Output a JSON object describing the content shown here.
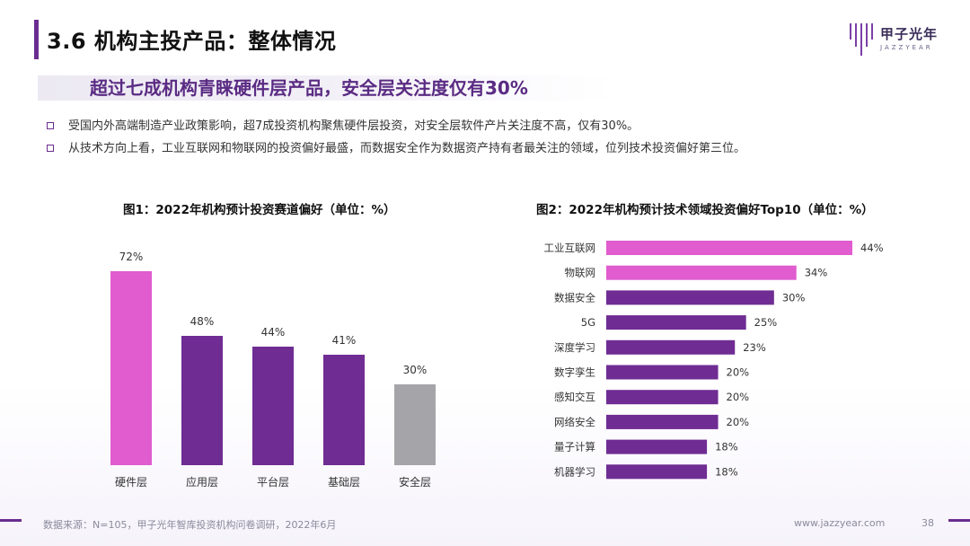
{
  "header": {
    "title": "3.6 机构主投产品：整体情况",
    "logo_text": "甲子光年",
    "logo_sub": "JAZZYEAR"
  },
  "subtitle": "超过七成机构青睐硬件层产品，安全层关注度仅有30%",
  "bullets": [
    "受国内外高端制造产业政策影响，超7成投资机构聚焦硬件层投资，对安全层软件产片关注度不高，仅有30%。",
    "从技术方向上看，工业互联网和物联网的投资偏好最盛，而数据安全作为数据资产持有者最关注的领域，位列技术投资偏好第三位。"
  ],
  "colors": {
    "accent": "#6a2d8f",
    "pink": "#e05ccf",
    "purple": "#6f2c93",
    "gray": "#a5a5a9"
  },
  "chart_data": [
    {
      "type": "bar",
      "title": "图1：2022年机构预计投资赛道偏好（单位：%）",
      "categories": [
        "硬件层",
        "应用层",
        "平台层",
        "基础层",
        "安全层"
      ],
      "values": [
        72,
        48,
        44,
        41,
        30
      ],
      "value_labels": [
        "72%",
        "48%",
        "44%",
        "41%",
        "30%"
      ],
      "bar_colors": [
        "#e05ccf",
        "#6f2c93",
        "#6f2c93",
        "#6f2c93",
        "#a5a5a9"
      ],
      "ylim": [
        0,
        80
      ]
    },
    {
      "type": "bar",
      "orientation": "horizontal",
      "title": "图2：2022年机构预计技术领域投资偏好Top10（单位：%）",
      "categories": [
        "工业互联网",
        "物联网",
        "数据安全",
        "5G",
        "深度学习",
        "数字孪生",
        "感知交互",
        "网络安全",
        "量子计算",
        "机器学习"
      ],
      "values": [
        44,
        34,
        30,
        25,
        23,
        20,
        20,
        20,
        18,
        18
      ],
      "value_labels": [
        "44%",
        "34%",
        "30%",
        "25%",
        "23%",
        "20%",
        "20%",
        "20%",
        "18%",
        "18%"
      ],
      "bar_colors": [
        "#e05ccf",
        "#e05ccf",
        "#6f2c93",
        "#6f2c93",
        "#6f2c93",
        "#6f2c93",
        "#6f2c93",
        "#6f2c93",
        "#6f2c93",
        "#6f2c93"
      ],
      "xlim": [
        0,
        44
      ]
    }
  ],
  "footer": {
    "source": "数据来源：N=105，甲子光年智库投资机构问卷调研，2022年6月",
    "website": "www.jazzyear.com",
    "page": "38"
  }
}
